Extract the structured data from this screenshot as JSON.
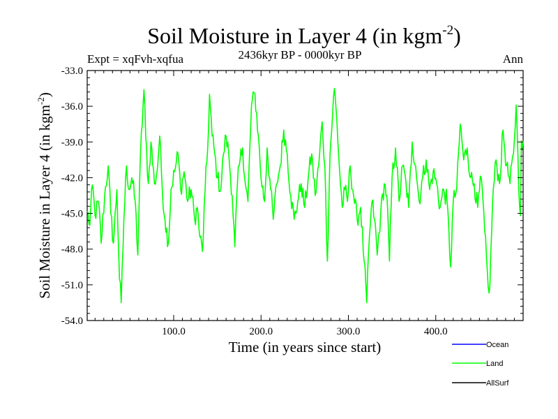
{
  "chart_data": {
    "type": "line",
    "title": {
      "main": "Soil Moisture in Layer 4 (in kgm",
      "sup": "-2",
      "close": ")"
    },
    "subtitle": "2436kyr BP - 0000kyr BP",
    "expt_label": "Expt = xqFvh-xqfua",
    "period_label": "Ann",
    "xlabel": "Time (in years since start)",
    "ylabel": {
      "main": "Soil Moisture in Layer 4 (in kgm",
      "sup": "-2",
      "close": ")"
    },
    "xlim": [
      1,
      500
    ],
    "ylim": [
      -54.0,
      -33.0
    ],
    "x_ticks": [
      100,
      200,
      300,
      400
    ],
    "x_tick_labels": [
      "100.0",
      "200.0",
      "300.0",
      "400.0"
    ],
    "y_ticks": [
      -54,
      -51,
      -48,
      -45,
      -42,
      -39,
      -36,
      -33
    ],
    "y_tick_labels": [
      "-54.0",
      "-51.0",
      "-48.0",
      "-45.0",
      "-42.0",
      "-39.0",
      "-36.0",
      "-33.0"
    ],
    "legend": {
      "placement": "bottom-right",
      "entries": [
        {
          "name": "Ocean",
          "color": "#0000ff"
        },
        {
          "name": "Land",
          "color": "#00ff00"
        },
        {
          "name": "AllSurf",
          "color": "#000000"
        }
      ]
    },
    "series": [
      {
        "name": "Land",
        "color": "#00ff00",
        "keypoints": [
          [
            1,
            -44.8
          ],
          [
            4,
            -46
          ],
          [
            7,
            -42.6
          ],
          [
            10,
            -45.2
          ],
          [
            14,
            -44
          ],
          [
            17,
            -47.5
          ],
          [
            21,
            -43.5
          ],
          [
            25,
            -41
          ],
          [
            28,
            -45
          ],
          [
            31,
            -47.5
          ],
          [
            35,
            -43
          ],
          [
            38,
            -50.5
          ],
          [
            40,
            -52.5
          ],
          [
            43,
            -45.5
          ],
          [
            46,
            -41
          ],
          [
            49,
            -43
          ],
          [
            52,
            -42
          ],
          [
            56,
            -44
          ],
          [
            59,
            -48.5
          ],
          [
            62,
            -40
          ],
          [
            66,
            -34.6
          ],
          [
            68,
            -38.5
          ],
          [
            71,
            -42.5
          ],
          [
            74,
            -39
          ],
          [
            78,
            -42.5
          ],
          [
            81,
            -41.5
          ],
          [
            84,
            -38.5
          ],
          [
            87,
            -43
          ],
          [
            90,
            -45.5
          ],
          [
            94,
            -47.5
          ],
          [
            97,
            -43
          ],
          [
            101,
            -41.5
          ],
          [
            105,
            -40
          ],
          [
            108,
            -43
          ],
          [
            112,
            -41.5
          ],
          [
            116,
            -44
          ],
          [
            120,
            -43
          ],
          [
            124,
            -45.5
          ],
          [
            127,
            -44.5
          ],
          [
            130,
            -47
          ],
          [
            133,
            -48.2
          ],
          [
            136,
            -43
          ],
          [
            139,
            -39.5
          ],
          [
            141,
            -35
          ],
          [
            144,
            -38.5
          ],
          [
            147,
            -40
          ],
          [
            150,
            -42
          ],
          [
            154,
            -43
          ],
          [
            157,
            -40
          ],
          [
            160,
            -38.5
          ],
          [
            163,
            -40
          ],
          [
            167,
            -43.5
          ],
          [
            170,
            -47.8
          ],
          [
            173,
            -42.5
          ],
          [
            176,
            -40.5
          ],
          [
            179,
            -39.5
          ],
          [
            182,
            -42.5
          ],
          [
            185,
            -44
          ],
          [
            189,
            -36
          ],
          [
            193,
            -34.9
          ],
          [
            197,
            -38.5
          ],
          [
            200,
            -42
          ],
          [
            204,
            -44
          ],
          [
            207,
            -39.5
          ],
          [
            211,
            -43
          ],
          [
            214,
            -45.5
          ],
          [
            218,
            -42.5
          ],
          [
            222,
            -41
          ],
          [
            226,
            -38
          ],
          [
            230,
            -40
          ],
          [
            234,
            -43.5
          ],
          [
            238,
            -45.5
          ],
          [
            242,
            -44
          ],
          [
            246,
            -42.5
          ],
          [
            250,
            -44.5
          ],
          [
            254,
            -42
          ],
          [
            258,
            -40
          ],
          [
            262,
            -43.5
          ],
          [
            266,
            -41
          ],
          [
            270,
            -37.3
          ],
          [
            273,
            -41
          ],
          [
            276,
            -49
          ],
          [
            279,
            -40
          ],
          [
            282,
            -36.5
          ],
          [
            284,
            -34.5
          ],
          [
            287,
            -37.5
          ],
          [
            290,
            -41.5
          ],
          [
            293,
            -44.5
          ],
          [
            296,
            -43
          ],
          [
            299,
            -44
          ],
          [
            302,
            -41
          ],
          [
            306,
            -43.5
          ],
          [
            310,
            -45.5
          ],
          [
            314,
            -44.5
          ],
          [
            318,
            -49
          ],
          [
            321,
            -52.5
          ],
          [
            324,
            -47
          ],
          [
            327,
            -44
          ],
          [
            330,
            -45.5
          ],
          [
            333,
            -48.5
          ],
          [
            337,
            -45
          ],
          [
            341,
            -42.5
          ],
          [
            344,
            -43.5
          ],
          [
            347,
            -49
          ],
          [
            350,
            -42
          ],
          [
            354,
            -39.5
          ],
          [
            358,
            -44
          ],
          [
            362,
            -41
          ],
          [
            366,
            -42.5
          ],
          [
            369,
            -44.5
          ],
          [
            373,
            -39
          ],
          [
            377,
            -41
          ],
          [
            381,
            -44
          ],
          [
            385,
            -42
          ],
          [
            389,
            -40.5
          ],
          [
            393,
            -43
          ],
          [
            397,
            -41.5
          ],
          [
            401,
            -42.5
          ],
          [
            405,
            -44.5
          ],
          [
            409,
            -43
          ],
          [
            413,
            -44
          ],
          [
            417,
            -49.5
          ],
          [
            420,
            -44
          ],
          [
            424,
            -43
          ],
          [
            428,
            -37.5
          ],
          [
            432,
            -40.5
          ],
          [
            436,
            -39.5
          ],
          [
            440,
            -42
          ],
          [
            444,
            -42.5
          ],
          [
            448,
            -44.5
          ],
          [
            452,
            -42
          ],
          [
            456,
            -46.5
          ],
          [
            460,
            -51.2
          ],
          [
            462,
            -51
          ],
          [
            465,
            -44
          ],
          [
            469,
            -40.5
          ],
          [
            473,
            -42.5
          ],
          [
            477,
            -38
          ],
          [
            481,
            -41
          ],
          [
            485,
            -42.5
          ],
          [
            489,
            -40
          ],
          [
            492,
            -35.9
          ],
          [
            494,
            -40
          ],
          [
            496,
            -44.5
          ],
          [
            497,
            -45.2
          ],
          [
            498,
            -38.9
          ],
          [
            500,
            -38.9
          ]
        ]
      }
    ]
  }
}
